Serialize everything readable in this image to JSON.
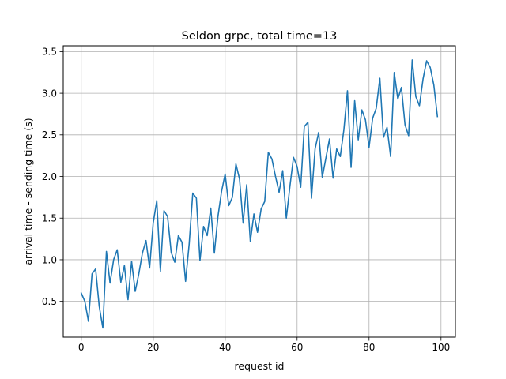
{
  "chart_data": {
    "type": "line",
    "title": "Seldon grpc, total time=13",
    "xlabel": "request id",
    "ylabel": "arrival time - sending time (s)",
    "xlim": [
      -5,
      104
    ],
    "ylim": [
      0.07,
      3.57
    ],
    "grid": true,
    "legend": "none",
    "xticks": [
      0,
      20,
      40,
      60,
      80,
      100
    ],
    "yticks": [
      0.5,
      1.0,
      1.5,
      2.0,
      2.5,
      3.0,
      3.5
    ],
    "xtick_labels": [
      "0",
      "20",
      "40",
      "60",
      "80",
      "100"
    ],
    "ytick_labels": [
      "0.5",
      "1.0",
      "1.5",
      "2.0",
      "2.5",
      "3.0",
      "3.5"
    ],
    "line_color": "#1f77b4",
    "series": [
      {
        "x": [
          0,
          1,
          2,
          3,
          4,
          5,
          6,
          7,
          8,
          9,
          10,
          11,
          12,
          13,
          14,
          15,
          16,
          17,
          18,
          19,
          20,
          21,
          22,
          23,
          24,
          25,
          26,
          27,
          28,
          29,
          30,
          31,
          32,
          33,
          34,
          35,
          36,
          37,
          38,
          39,
          40,
          41,
          42,
          43,
          44,
          45,
          46,
          47,
          48,
          49,
          50,
          51,
          52,
          53,
          54,
          55,
          56,
          57,
          58,
          59,
          60,
          61,
          62,
          63,
          64,
          65,
          66,
          67,
          68,
          69,
          70,
          71,
          72,
          73,
          74,
          75,
          76,
          77,
          78,
          79,
          80,
          81,
          82,
          83,
          84,
          85,
          86,
          87,
          88,
          89,
          90,
          91,
          92,
          93,
          94,
          95,
          96,
          97,
          98,
          99
        ],
        "values": [
          0.6,
          0.5,
          0.26,
          0.83,
          0.89,
          0.44,
          0.18,
          1.1,
          0.72,
          1.0,
          1.12,
          0.73,
          0.93,
          0.52,
          0.98,
          0.62,
          0.83,
          1.08,
          1.23,
          0.9,
          1.44,
          1.71,
          0.86,
          1.59,
          1.52,
          1.09,
          0.97,
          1.29,
          1.21,
          0.74,
          1.19,
          1.8,
          1.74,
          0.99,
          1.4,
          1.29,
          1.62,
          1.08,
          1.52,
          1.82,
          2.03,
          1.65,
          1.75,
          2.15,
          1.97,
          1.44,
          1.9,
          1.22,
          1.55,
          1.33,
          1.61,
          1.7,
          2.29,
          2.21,
          2.0,
          1.81,
          2.07,
          1.5,
          1.88,
          2.23,
          2.12,
          1.87,
          2.6,
          2.65,
          1.74,
          2.33,
          2.53,
          1.99,
          2.22,
          2.45,
          1.98,
          2.33,
          2.24,
          2.56,
          3.03,
          2.11,
          2.91,
          2.44,
          2.8,
          2.68,
          2.35,
          2.7,
          2.82,
          3.18,
          2.47,
          2.59,
          2.24,
          3.25,
          2.93,
          3.07,
          2.62,
          2.49,
          3.4,
          2.96,
          2.85,
          3.17,
          3.39,
          3.31,
          3.1,
          2.72
        ]
      }
    ]
  }
}
